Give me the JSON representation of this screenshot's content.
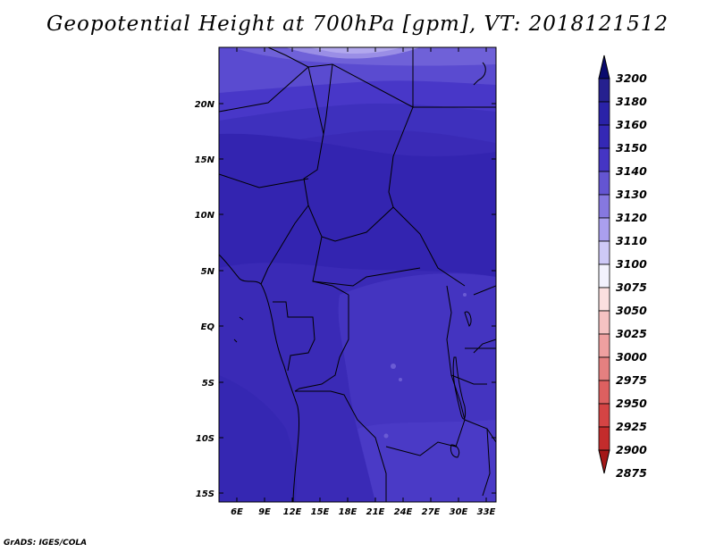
{
  "title": "Geopotential Height at 700hPa [gpm], VT: 2018121512",
  "credit": "GrADS: IGES/COLA",
  "map": {
    "lat_labels": [
      "20N",
      "15N",
      "10N",
      "5N",
      "EQ",
      "5S",
      "10S",
      "15S"
    ],
    "lon_labels": [
      "6E",
      "9E",
      "12E",
      "15E",
      "18E",
      "21E",
      "24E",
      "27E",
      "30E",
      "33E"
    ],
    "lat_range": [
      -16,
      25
    ],
    "lon_range": [
      3,
      34
    ]
  },
  "colorbar": {
    "labels": [
      "3200",
      "3180",
      "3160",
      "3150",
      "3140",
      "3130",
      "3120",
      "3110",
      "3100",
      "3075",
      "3050",
      "3025",
      "3000",
      "2975",
      "2950",
      "2925",
      "2900",
      "2875"
    ],
    "colors": [
      "#0a0a6e",
      "#25208f",
      "#2a22a8",
      "#3428b5",
      "#4535c4",
      "#6455d2",
      "#8678e0",
      "#aa9fee",
      "#cec9f7",
      "#f3f2fd",
      "#fbe0e0",
      "#f5c2c2",
      "#eea0a0",
      "#e48080",
      "#dd6060",
      "#d44444",
      "#c32c2c",
      "#a41717"
    ]
  }
}
